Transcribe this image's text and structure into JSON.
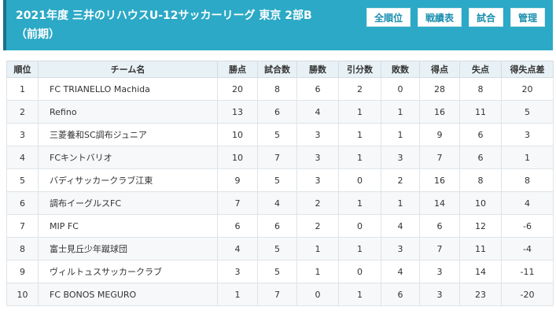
{
  "header": {
    "title": "2021年度 三井のリハウスU-12サッカーリーグ 東京 2部B（前期）",
    "nav": [
      "全順位",
      "戦績表",
      "試合",
      "管理"
    ]
  },
  "table": {
    "columns": [
      "順位",
      "チーム名",
      "勝点",
      "試合数",
      "勝数",
      "引分数",
      "敗数",
      "得点",
      "失点",
      "得失点差"
    ],
    "rows": [
      [
        "1",
        "FC TRIANELLO Machida",
        "20",
        "8",
        "6",
        "2",
        "0",
        "28",
        "8",
        "20"
      ],
      [
        "2",
        "Refino",
        "13",
        "6",
        "4",
        "1",
        "1",
        "16",
        "11",
        "5"
      ],
      [
        "3",
        "三菱養和SC調布ジュニア",
        "10",
        "5",
        "3",
        "1",
        "1",
        "9",
        "6",
        "3"
      ],
      [
        "4",
        "FCキントバリオ",
        "10",
        "7",
        "3",
        "1",
        "3",
        "7",
        "6",
        "1"
      ],
      [
        "5",
        "バディサッカークラブ江東",
        "9",
        "5",
        "3",
        "0",
        "2",
        "16",
        "8",
        "8"
      ],
      [
        "6",
        "調布イーグルスFC",
        "7",
        "4",
        "2",
        "1",
        "1",
        "14",
        "10",
        "4"
      ],
      [
        "7",
        "MIP FC",
        "6",
        "6",
        "2",
        "0",
        "4",
        "6",
        "12",
        "-6"
      ],
      [
        "8",
        "富士見丘少年蹴球団",
        "4",
        "5",
        "1",
        "1",
        "3",
        "7",
        "11",
        "-4"
      ],
      [
        "9",
        "ヴィルトュスサッカークラブ",
        "3",
        "5",
        "1",
        "0",
        "4",
        "3",
        "14",
        "-11"
      ],
      [
        "10",
        "FC BONOS MEGURO",
        "1",
        "7",
        "0",
        "1",
        "6",
        "3",
        "23",
        "-20"
      ]
    ]
  },
  "colors": {
    "header_bg": "#2ba9c6",
    "header_accent": "#1f6f8b",
    "button_text": "#1c8fb0",
    "table_header_bg": "#e8f1f5"
  }
}
